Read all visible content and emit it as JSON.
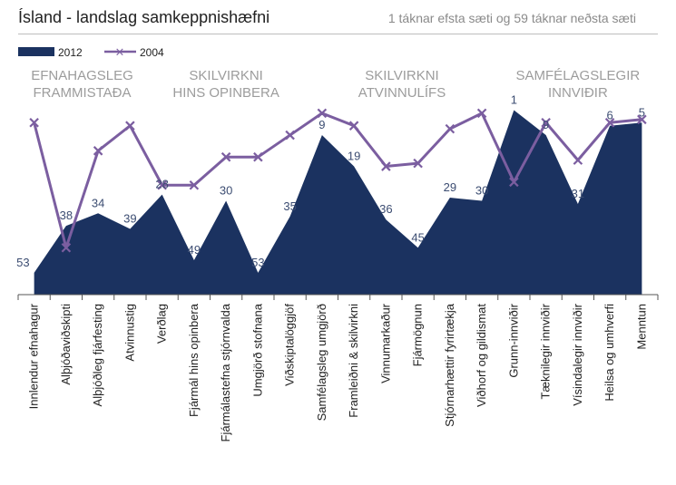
{
  "title": "Ísland - landslag samkeppnishæfni",
  "subtitle": "1 táknar efsta sæti og 59 táknar neðsta sæti",
  "colors": {
    "area_2012": "#1b3260",
    "line_2004": "#7b5ea0",
    "label": "#3c4d72",
    "group_label": "#9c9c9c"
  },
  "chart_data": {
    "type": "area",
    "y_axis": {
      "min": 0,
      "max": 60,
      "inverted": true,
      "ticks_shown": false
    },
    "legend": {
      "placement": "top-left"
    },
    "group_labels": [
      {
        "line1": "EFNAHAGSLEG",
        "line2": "FRAMMISTAÐA",
        "start": 0,
        "end": 3
      },
      {
        "line1": "SKILVIRKNI",
        "line2": "HINS OPINBERA",
        "start": 4,
        "end": 8
      },
      {
        "line1": "SKILVIRKNI",
        "line2": "ATVINNULÍFS",
        "start": 9,
        "end": 14
      },
      {
        "line1": "SAMFÉLAGSLEGIR",
        "line2": "INNVIÐIR",
        "start": 15,
        "end": 19
      }
    ],
    "categories": [
      "Innlendur efnahagur",
      "Alþjóðaviðskipti",
      "Alþjóðleg fjárfesting",
      "Atvinnustig",
      "Verðlag",
      "Fjármál hins opinbera",
      "Fjármálastefna stjórnvalda",
      "Umgjörð stofnana",
      "Viðskiptalöggjöf",
      "Samfélagsleg umgjörð",
      "Framleiðni & skilvirkni",
      "Vinnumarkaður",
      "Fjármögnun",
      "Stjórnarhættir fyrirtækja",
      "Viðhorf og gildismat",
      "Grunn-innviðir",
      "Tæknilegir innviðir",
      "Vísindalegir innviðir",
      "Heilsa og umhverfi",
      "Menntun"
    ],
    "series": [
      {
        "name": "2012",
        "type": "area",
        "values": [
          53,
          38,
          34,
          39,
          28,
          49,
          30,
          53,
          35,
          9,
          19,
          36,
          45,
          29,
          30,
          1,
          9,
          31,
          6,
          5
        ],
        "labels": [
          "53",
          "38",
          "34",
          "39",
          "28",
          "49",
          "30",
          "53",
          "35",
          "9",
          "19",
          "36",
          "45",
          "29",
          "30",
          "1",
          "9",
          "31",
          "6",
          "5"
        ]
      },
      {
        "name": "2004",
        "type": "line",
        "values": [
          5,
          45,
          14,
          6,
          25,
          25,
          16,
          16,
          9,
          2,
          6,
          19,
          18,
          7,
          2,
          24,
          5,
          17,
          5,
          4
        ]
      }
    ]
  }
}
